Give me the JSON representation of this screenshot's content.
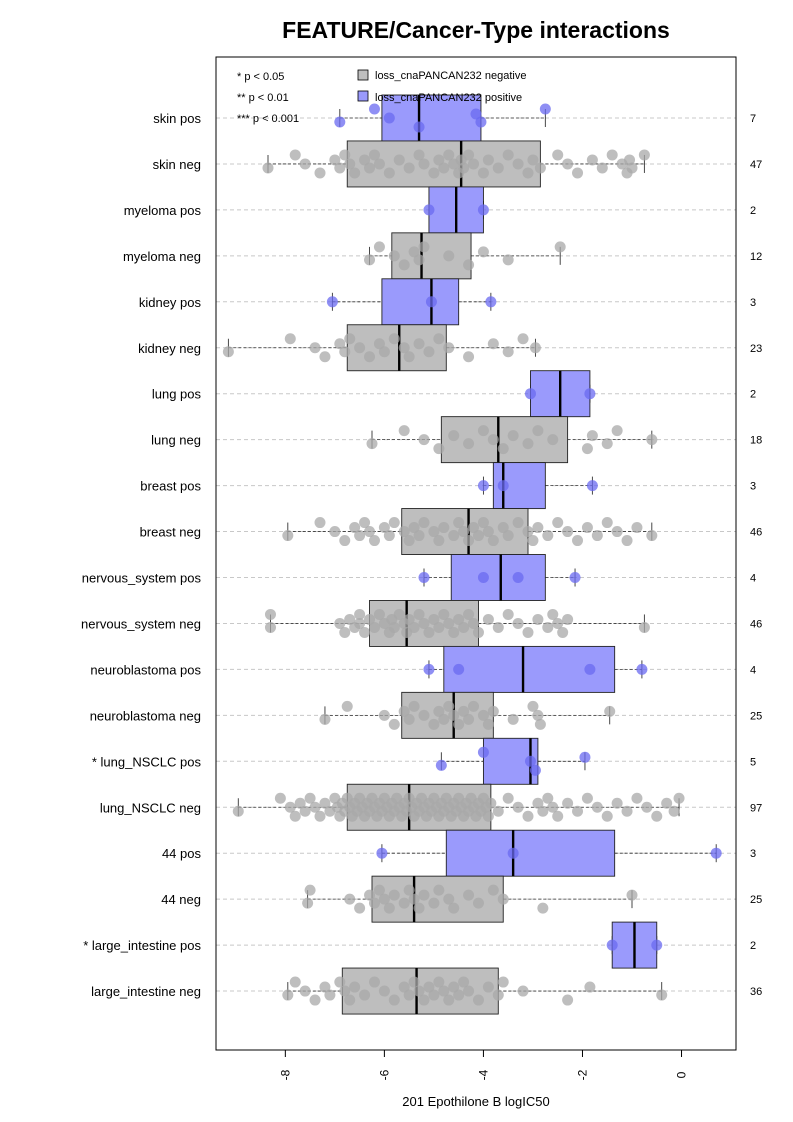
{
  "chart_data": {
    "type": "boxplot",
    "orientation": "horizontal",
    "title": "FEATURE/Cancer-Type interactions",
    "xlabel": "201 Epothilone B logIC50",
    "xlim": [
      -9.4,
      1.1
    ],
    "xticks": [
      -8,
      -6,
      -4,
      -2,
      0
    ],
    "xtick_labels": [
      "-8",
      "-6",
      "-4",
      "-2",
      "0"
    ],
    "significance_legend": [
      "* p < 0.05",
      "** p < 0.01",
      "*** p < 0.001"
    ],
    "legend": [
      {
        "label": "loss_cnaPANCAN232 negative",
        "color": "#bebebe"
      },
      {
        "label": "loss_cnaPANCAN232 positive",
        "color": "#9a9afc"
      }
    ],
    "colors": {
      "neg_box": "#bebebe",
      "pos_box": "#9a9afc",
      "neg_point": "#a8a8a8",
      "pos_point": "#6a6af0",
      "grid": "#c8c8c8"
    },
    "rows": [
      {
        "label": "skin pos",
        "group": "pos",
        "n": "7",
        "stats": [
          -6.9,
          -6.05,
          -5.3,
          -4.05,
          -2.75
        ],
        "points": [
          -6.9,
          -6.2,
          -5.9,
          -5.3,
          -4.15,
          -4.05,
          -2.75
        ]
      },
      {
        "label": "skin neg",
        "group": "neg",
        "n": "47",
        "stats": [
          -8.35,
          -6.75,
          -4.45,
          -2.85,
          -0.75
        ],
        "points": [
          -8.35,
          -7.8,
          -7.6,
          -7.3,
          -7.0,
          -6.9,
          -6.8,
          -6.7,
          -6.6,
          -6.4,
          -6.3,
          -6.2,
          -6.1,
          -5.9,
          -5.7,
          -5.5,
          -5.3,
          -5.2,
          -5.0,
          -4.9,
          -4.8,
          -4.7,
          -4.6,
          -4.5,
          -4.45,
          -4.4,
          -4.3,
          -4.2,
          -4.0,
          -3.9,
          -3.7,
          -3.5,
          -3.3,
          -3.1,
          -3.0,
          -2.85,
          -2.5,
          -2.3,
          -2.1,
          -1.8,
          -1.6,
          -1.4,
          -1.2,
          -1.1,
          -1.05,
          -1.0,
          -0.75
        ]
      },
      {
        "label": "myeloma pos",
        "group": "pos",
        "n": "2",
        "stats": [
          -5.1,
          -5.1,
          -4.55,
          -4.0,
          -4.0
        ],
        "points": [
          -5.1,
          -4.0
        ]
      },
      {
        "label": "myeloma neg",
        "group": "neg",
        "n": "12",
        "stats": [
          -6.3,
          -5.85,
          -5.25,
          -4.25,
          -2.45
        ],
        "points": [
          -6.3,
          -6.1,
          -5.8,
          -5.6,
          -5.4,
          -5.3,
          -5.2,
          -4.7,
          -4.3,
          -4.0,
          -3.5,
          -2.45
        ]
      },
      {
        "label": "kidney pos",
        "group": "pos",
        "n": "3",
        "stats": [
          -7.05,
          -6.05,
          -5.05,
          -4.5,
          -3.85
        ],
        "points": [
          -7.05,
          -5.05,
          -3.85
        ]
      },
      {
        "label": "kidney neg",
        "group": "neg",
        "n": "23",
        "stats": [
          -9.15,
          -6.75,
          -5.7,
          -4.75,
          -2.95
        ],
        "points": [
          -9.15,
          -7.9,
          -7.4,
          -7.2,
          -6.9,
          -6.8,
          -6.7,
          -6.5,
          -6.3,
          -6.1,
          -6.0,
          -5.8,
          -5.6,
          -5.5,
          -5.3,
          -5.1,
          -4.9,
          -4.7,
          -4.3,
          -3.8,
          -3.5,
          -3.2,
          -2.95
        ]
      },
      {
        "label": "lung pos",
        "group": "pos",
        "n": "2",
        "stats": [
          -3.05,
          -3.05,
          -2.45,
          -1.85,
          -1.85
        ],
        "points": [
          -3.05,
          -1.85
        ]
      },
      {
        "label": "lung neg",
        "group": "neg",
        "n": "18",
        "stats": [
          -6.25,
          -4.85,
          -3.7,
          -2.3,
          -0.6
        ],
        "points": [
          -6.25,
          -5.6,
          -5.2,
          -4.9,
          -4.6,
          -4.3,
          -4.0,
          -3.8,
          -3.6,
          -3.4,
          -3.1,
          -2.9,
          -2.6,
          -1.9,
          -1.8,
          -1.5,
          -1.3,
          -0.6
        ]
      },
      {
        "label": "breast pos",
        "group": "pos",
        "n": "3",
        "stats": [
          -4.0,
          -3.8,
          -3.6,
          -2.75,
          -1.8
        ],
        "points": [
          -4.0,
          -3.6,
          -1.8
        ]
      },
      {
        "label": "breast neg",
        "group": "neg",
        "n": "46",
        "stats": [
          -7.95,
          -5.65,
          -4.3,
          -3.1,
          -0.6
        ],
        "points": [
          -7.95,
          -7.3,
          -7.0,
          -6.8,
          -6.6,
          -6.5,
          -6.4,
          -6.3,
          -6.2,
          -6.0,
          -5.9,
          -5.8,
          -5.6,
          -5.5,
          -5.4,
          -5.3,
          -5.2,
          -5.0,
          -4.9,
          -4.8,
          -4.6,
          -4.5,
          -4.4,
          -4.3,
          -4.2,
          -4.1,
          -4.0,
          -3.9,
          -3.8,
          -3.6,
          -3.5,
          -3.3,
          -3.1,
          -3.0,
          -2.9,
          -2.7,
          -2.5,
          -2.3,
          -2.1,
          -1.9,
          -1.7,
          -1.5,
          -1.3,
          -1.1,
          -0.9,
          -0.6
        ]
      },
      {
        "label": "nervous_system pos",
        "group": "pos",
        "n": "4",
        "stats": [
          -5.2,
          -4.65,
          -3.65,
          -2.75,
          -2.15
        ],
        "points": [
          -5.2,
          -4.0,
          -3.3,
          -2.15
        ]
      },
      {
        "label": "nervous_system neg",
        "group": "neg",
        "n": "46",
        "stats": [
          -8.3,
          -6.3,
          -5.55,
          -4.1,
          -0.75
        ],
        "points": [
          -8.3,
          -8.3,
          -6.9,
          -6.8,
          -6.7,
          -6.6,
          -6.5,
          -6.5,
          -6.4,
          -6.3,
          -6.2,
          -6.1,
          -6.0,
          -5.9,
          -5.85,
          -5.8,
          -5.7,
          -5.6,
          -5.55,
          -5.5,
          -5.4,
          -5.3,
          -5.2,
          -5.1,
          -5.0,
          -4.9,
          -4.8,
          -4.7,
          -4.6,
          -4.5,
          -4.4,
          -4.3,
          -4.2,
          -4.1,
          -3.9,
          -3.7,
          -3.5,
          -3.3,
          -3.1,
          -2.9,
          -2.7,
          -2.6,
          -2.5,
          -2.4,
          -2.3,
          -0.75
        ]
      },
      {
        "label": "neuroblastoma pos",
        "group": "pos",
        "n": "4",
        "stats": [
          -5.1,
          -4.8,
          -3.2,
          -1.35,
          -0.8
        ],
        "points": [
          -5.1,
          -4.5,
          -1.85,
          -0.8
        ]
      },
      {
        "label": "neuroblastoma neg",
        "group": "neg",
        "n": "25",
        "stats": [
          -7.2,
          -5.65,
          -4.6,
          -3.8,
          -1.45
        ],
        "points": [
          -7.2,
          -6.75,
          -6.0,
          -5.8,
          -5.6,
          -5.5,
          -5.4,
          -5.2,
          -5.0,
          -4.9,
          -4.8,
          -4.7,
          -4.6,
          -4.5,
          -4.4,
          -4.3,
          -4.2,
          -4.0,
          -3.9,
          -3.8,
          -3.4,
          -3.0,
          -2.9,
          -2.85,
          -1.45
        ]
      },
      {
        "label": "* lung_NSCLC pos",
        "group": "pos",
        "n": "5",
        "stats": [
          -4.85,
          -4.0,
          -3.05,
          -2.9,
          -1.95
        ],
        "points": [
          -4.85,
          -4.0,
          -3.05,
          -2.95,
          -1.95
        ]
      },
      {
        "label": "lung_NSCLC neg",
        "group": "neg",
        "n": "97",
        "stats": [
          -8.95,
          -6.75,
          -5.5,
          -3.85,
          -0.05
        ],
        "points": [
          -8.95,
          -8.1,
          -7.9,
          -7.8,
          -7.7,
          -7.6,
          -7.5,
          -7.4,
          -7.3,
          -7.2,
          -7.1,
          -7.0,
          -6.95,
          -6.9,
          -6.85,
          -6.8,
          -6.75,
          -6.7,
          -6.65,
          -6.6,
          -6.55,
          -6.5,
          -6.45,
          -6.4,
          -6.35,
          -6.3,
          -6.25,
          -6.2,
          -6.15,
          -6.1,
          -6.05,
          -6.0,
          -5.95,
          -5.9,
          -5.85,
          -5.8,
          -5.75,
          -5.7,
          -5.65,
          -5.6,
          -5.55,
          -5.5,
          -5.45,
          -5.4,
          -5.35,
          -5.3,
          -5.25,
          -5.2,
          -5.15,
          -5.1,
          -5.05,
          -5.0,
          -4.95,
          -4.9,
          -4.85,
          -4.8,
          -4.75,
          -4.7,
          -4.65,
          -4.6,
          -4.55,
          -4.5,
          -4.45,
          -4.4,
          -4.35,
          -4.3,
          -4.25,
          -4.2,
          -4.15,
          -4.1,
          -4.05,
          -4.0,
          -3.95,
          -3.9,
          -3.85,
          -3.7,
          -3.5,
          -3.3,
          -3.1,
          -2.9,
          -2.8,
          -2.7,
          -2.6,
          -2.5,
          -2.3,
          -2.1,
          -1.9,
          -1.7,
          -1.5,
          -1.3,
          -1.1,
          -0.9,
          -0.7,
          -0.5,
          -0.3,
          -0.15,
          -0.05
        ]
      },
      {
        "label": "44 pos",
        "group": "pos",
        "n": "3",
        "stats": [
          -6.05,
          -4.75,
          -3.4,
          -1.35,
          0.7
        ],
        "points": [
          -6.05,
          -3.4,
          0.7
        ]
      },
      {
        "label": "44 neg",
        "group": "neg",
        "n": "25",
        "stats": [
          -7.55,
          -6.25,
          -5.4,
          -3.6,
          -1.0
        ],
        "points": [
          -7.55,
          -7.5,
          -6.7,
          -6.5,
          -6.3,
          -6.2,
          -6.1,
          -6.0,
          -5.9,
          -5.8,
          -5.6,
          -5.5,
          -5.4,
          -5.3,
          -5.2,
          -5.0,
          -4.9,
          -4.7,
          -4.6,
          -4.3,
          -4.1,
          -3.8,
          -3.6,
          -2.8,
          -1.0
        ]
      },
      {
        "label": "* large_intestine pos",
        "group": "pos",
        "n": "2",
        "stats": [
          -1.4,
          -1.4,
          -0.95,
          -0.5,
          -0.5
        ],
        "points": [
          -1.4,
          -0.5
        ]
      },
      {
        "label": "large_intestine neg",
        "group": "neg",
        "n": "36",
        "stats": [
          -7.95,
          -6.85,
          -5.35,
          -3.7,
          -0.4
        ],
        "points": [
          -7.95,
          -7.8,
          -7.6,
          -7.4,
          -7.2,
          -7.1,
          -6.9,
          -6.8,
          -6.7,
          -6.6,
          -6.4,
          -6.2,
          -6.0,
          -5.8,
          -5.6,
          -5.5,
          -5.4,
          -5.3,
          -5.2,
          -5.1,
          -5.0,
          -4.9,
          -4.8,
          -4.7,
          -4.6,
          -4.5,
          -4.4,
          -4.3,
          -4.1,
          -3.9,
          -3.7,
          -3.6,
          -3.2,
          -2.3,
          -1.85,
          -0.4
        ]
      }
    ]
  }
}
